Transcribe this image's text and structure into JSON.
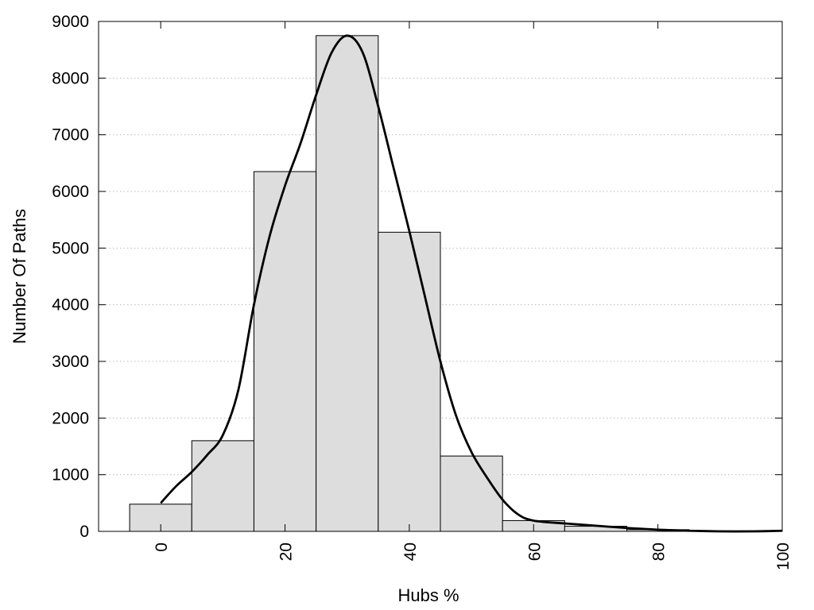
{
  "chart_data": {
    "type": "bar",
    "xlabel": "Hubs %",
    "ylabel": "Number Of Paths",
    "xlim": [
      -10,
      100
    ],
    "ylim": [
      0,
      9000
    ],
    "x_ticks": [
      0,
      20,
      40,
      60,
      80,
      100
    ],
    "y_ticks": [
      0,
      1000,
      2000,
      3000,
      4000,
      5000,
      6000,
      7000,
      8000,
      9000
    ],
    "grid": "horizontal dotted",
    "bin_width": 10,
    "bar_color": "#dddddd",
    "bars": [
      {
        "x": 0,
        "value": 480
      },
      {
        "x": 10,
        "value": 1600
      },
      {
        "x": 20,
        "value": 6350
      },
      {
        "x": 30,
        "value": 8750
      },
      {
        "x": 40,
        "value": 5280
      },
      {
        "x": 50,
        "value": 1330
      },
      {
        "x": 60,
        "value": 190
      },
      {
        "x": 70,
        "value": 90
      },
      {
        "x": 80,
        "value": 30
      },
      {
        "x": 90,
        "value": 10
      }
    ],
    "smooth_curve": [
      {
        "x": 0,
        "y": 500
      },
      {
        "x": 2.5,
        "y": 800
      },
      {
        "x": 5,
        "y": 1050
      },
      {
        "x": 7.5,
        "y": 1350
      },
      {
        "x": 10,
        "y": 1700
      },
      {
        "x": 12.5,
        "y": 2500
      },
      {
        "x": 15,
        "y": 4000
      },
      {
        "x": 17.5,
        "y": 5200
      },
      {
        "x": 20,
        "y": 6100
      },
      {
        "x": 22.5,
        "y": 6850
      },
      {
        "x": 25,
        "y": 7700
      },
      {
        "x": 27.5,
        "y": 8450
      },
      {
        "x": 30,
        "y": 8750
      },
      {
        "x": 32.5,
        "y": 8450
      },
      {
        "x": 35,
        "y": 7500
      },
      {
        "x": 37.5,
        "y": 6400
      },
      {
        "x": 40,
        "y": 5300
      },
      {
        "x": 42.5,
        "y": 4150
      },
      {
        "x": 45,
        "y": 3000
      },
      {
        "x": 47.5,
        "y": 2050
      },
      {
        "x": 50,
        "y": 1400
      },
      {
        "x": 52.5,
        "y": 950
      },
      {
        "x": 55,
        "y": 560
      },
      {
        "x": 57.5,
        "y": 300
      },
      {
        "x": 60,
        "y": 190
      },
      {
        "x": 65,
        "y": 140
      },
      {
        "x": 70,
        "y": 100
      },
      {
        "x": 75,
        "y": 60
      },
      {
        "x": 80,
        "y": 30
      },
      {
        "x": 85,
        "y": 10
      },
      {
        "x": 90,
        "y": 0
      },
      {
        "x": 95,
        "y": 0
      },
      {
        "x": 100,
        "y": 10
      }
    ]
  }
}
